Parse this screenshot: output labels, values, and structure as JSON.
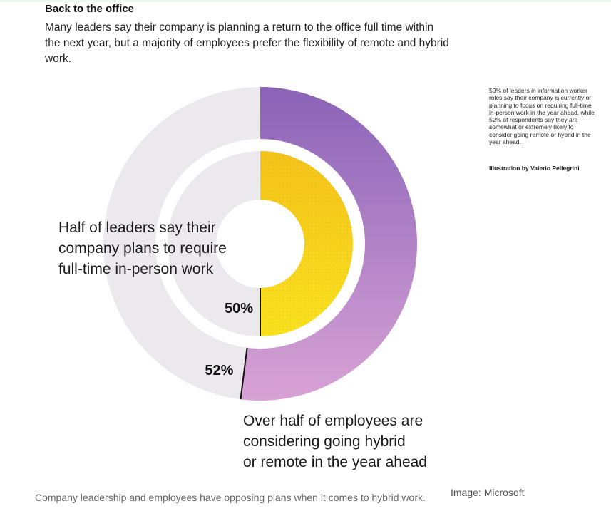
{
  "header": {
    "title": "Back to the office",
    "subtitle": "Many leaders say their company is planning a return to the office full time within the next year, but a majority of employees prefer the flexibility of remote and hybrid work."
  },
  "side_note": {
    "text": "50% of leaders in information worker roles say their company is currently or planning to focus on requiring full-time in-person work in the year ahead, while 52% of respondents say they are somewhat or extremely likely to consider going remote or hybrid in the year ahead.",
    "credit": "Illustration by Valerio Pellegrini"
  },
  "footer": {
    "caption": "Company leadership and employees have opposing plans when it comes to hybrid work.",
    "source": "Image: Microsoft"
  },
  "chart_data": {
    "type": "pie",
    "title": "Back to the office",
    "series": [
      {
        "ring": "inner",
        "value": 50,
        "value_label": "50%",
        "annotation": "Half of leaders say their\ncompany plans to require\nfull-time in-person work",
        "color": "#f7d21c"
      },
      {
        "ring": "outer",
        "value": 52,
        "value_label": "52%",
        "annotation": "Over half of employees are\nconsidering going hybrid\nor remote in the year ahead",
        "color": "#a77bc5"
      }
    ],
    "track_color": "#ebe8ee",
    "legend": "none"
  }
}
